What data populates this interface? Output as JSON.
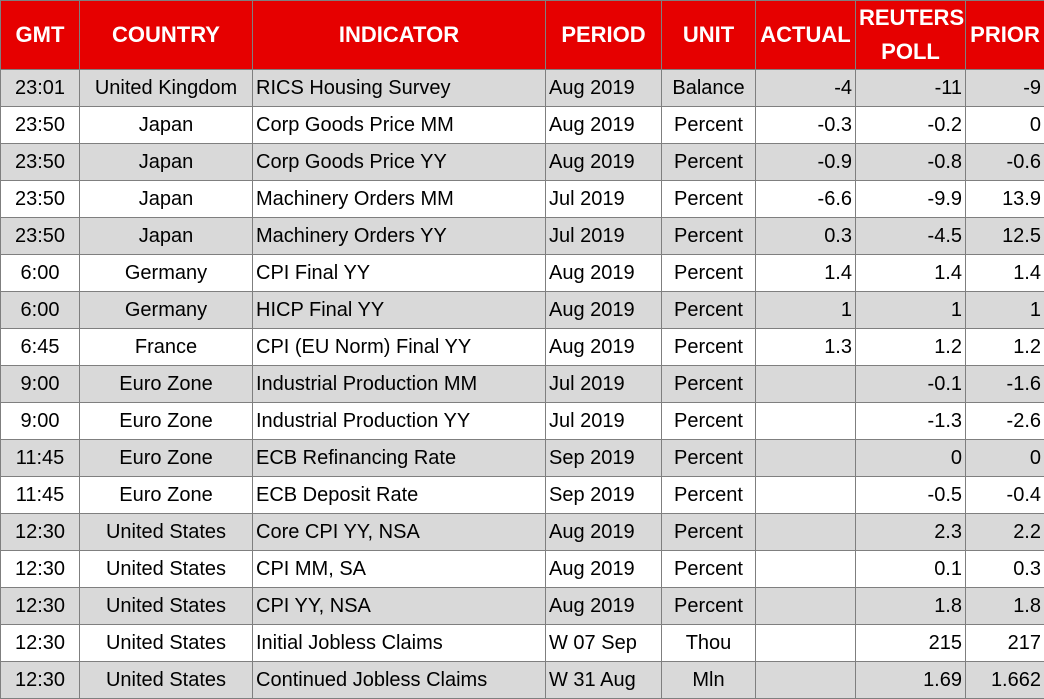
{
  "table": {
    "headers": [
      "GMT",
      "COUNTRY",
      "INDICATOR",
      "PERIOD",
      "UNIT",
      "ACTUAL",
      "REUTERS POLL",
      "PRIOR"
    ],
    "rows": [
      [
        "23:01",
        "United Kingdom",
        "RICS Housing Survey",
        "Aug 2019",
        "Balance",
        "-4",
        "-11",
        "-9"
      ],
      [
        "23:50",
        "Japan",
        "Corp Goods Price MM",
        "Aug 2019",
        "Percent",
        "-0.3",
        "-0.2",
        "0"
      ],
      [
        "23:50",
        "Japan",
        "Corp Goods Price YY",
        "Aug 2019",
        "Percent",
        "-0.9",
        "-0.8",
        "-0.6"
      ],
      [
        "23:50",
        "Japan",
        "Machinery Orders MM",
        "Jul 2019",
        "Percent",
        "-6.6",
        "-9.9",
        "13.9"
      ],
      [
        "23:50",
        "Japan",
        "Machinery Orders YY",
        "Jul 2019",
        "Percent",
        "0.3",
        "-4.5",
        "12.5"
      ],
      [
        "6:00",
        "Germany",
        "CPI Final YY",
        "Aug 2019",
        "Percent",
        "1.4",
        "1.4",
        "1.4"
      ],
      [
        "6:00",
        "Germany",
        "HICP Final YY",
        "Aug 2019",
        "Percent",
        "1",
        "1",
        "1"
      ],
      [
        "6:45",
        "France",
        "CPI (EU Norm) Final YY",
        "Aug 2019",
        "Percent",
        "1.3",
        "1.2",
        "1.2"
      ],
      [
        "9:00",
        "Euro Zone",
        "Industrial Production MM",
        "Jul 2019",
        "Percent",
        null,
        "-0.1",
        "-1.6"
      ],
      [
        "9:00",
        "Euro Zone",
        "Industrial Production YY",
        "Jul 2019",
        "Percent",
        null,
        "-1.3",
        "-2.6"
      ],
      [
        "11:45",
        "Euro Zone",
        "ECB Refinancing Rate",
        "Sep 2019",
        "Percent",
        null,
        "0",
        "0"
      ],
      [
        "11:45",
        "Euro Zone",
        "ECB Deposit Rate",
        "Sep 2019",
        "Percent",
        null,
        "-0.5",
        "-0.4"
      ],
      [
        "12:30",
        "United States",
        "Core CPI YY, NSA",
        "Aug 2019",
        "Percent",
        null,
        "2.3",
        "2.2"
      ],
      [
        "12:30",
        "United States",
        "CPI MM, SA",
        "Aug 2019",
        "Percent",
        null,
        "0.1",
        "0.3"
      ],
      [
        "12:30",
        "United States",
        "CPI YY, NSA",
        "Aug 2019",
        "Percent",
        null,
        "1.8",
        "1.8"
      ],
      [
        "12:30",
        "United States",
        "Initial Jobless Claims",
        "W 07 Sep",
        "Thou",
        null,
        "215",
        "217"
      ],
      [
        "12:30",
        "United States",
        "Continued Jobless Claims",
        "W 31 Aug",
        "Mln",
        null,
        "1.69",
        "1.662"
      ]
    ]
  }
}
